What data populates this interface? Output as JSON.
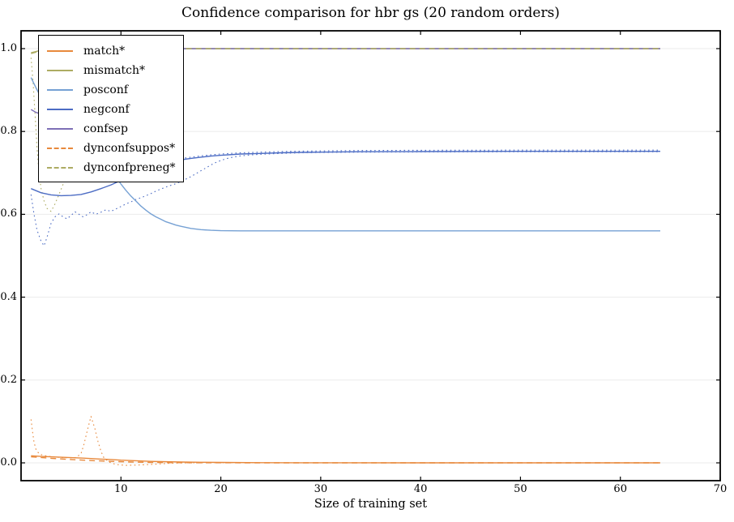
{
  "title": "Confidence comparison for hbr gs (20 random orders)",
  "chart_data": {
    "type": "line",
    "title": "Confidence comparison for hbr gs (20 random orders)",
    "xlabel": "Size of training set",
    "ylabel": "",
    "xlim": [
      0,
      70
    ],
    "ylim": [
      -0.043,
      1.043
    ],
    "xticks": [
      10,
      20,
      30,
      40,
      50,
      60,
      70
    ],
    "xtick_labels": [
      "10",
      "20",
      "30",
      "40",
      "50",
      "60",
      "70"
    ],
    "yticks": [
      0.0,
      0.2,
      0.4,
      0.6,
      0.8,
      1.0
    ],
    "ytick_labels": [
      "0.0",
      "0.2",
      "0.4",
      "0.6",
      "0.8",
      "1.0"
    ],
    "grid": "horizontal",
    "grid_color": "#ebebeb",
    "legend_position": "upper-left",
    "legend": [
      {
        "label": "match*",
        "color": "#E8893C",
        "style": "solid"
      },
      {
        "label": "mismatch*",
        "color": "#ADAC63",
        "style": "solid"
      },
      {
        "label": "posconf",
        "color": "#76A1D4",
        "style": "solid"
      },
      {
        "label": "negconf",
        "color": "#4C6CC4",
        "style": "solid"
      },
      {
        "label": "confsep",
        "color": "#7E6FB6",
        "style": "solid"
      },
      {
        "label": "dynconfsuppos*",
        "color": "#E8893C",
        "style": "dashed"
      },
      {
        "label": "dynconfpreneg*",
        "color": "#ADAC63",
        "style": "dashed"
      }
    ],
    "series": [
      {
        "name": "mismatch-std-lower",
        "color": "#ADAC63",
        "style": "dotted",
        "width": 1.1,
        "points": [
          [
            1,
            0.978
          ],
          [
            1.2,
            0.92
          ],
          [
            1.4,
            0.84
          ],
          [
            1.6,
            0.76
          ],
          [
            1.8,
            0.7
          ],
          [
            2,
            0.662
          ],
          [
            2.3,
            0.632
          ],
          [
            2.6,
            0.614
          ],
          [
            3,
            0.607
          ],
          [
            3.4,
            0.625
          ],
          [
            3.8,
            0.648
          ],
          [
            4.2,
            0.672
          ],
          [
            4.8,
            0.71
          ],
          [
            5.5,
            0.762
          ],
          [
            6.2,
            0.818
          ],
          [
            7,
            0.875
          ],
          [
            7.8,
            0.92
          ],
          [
            8.6,
            0.952
          ],
          [
            9.5,
            0.973
          ],
          [
            10.5,
            0.985
          ],
          [
            12,
            0.993
          ],
          [
            14,
            0.998
          ],
          [
            16,
            1.0
          ],
          [
            64,
            1.0
          ]
        ]
      },
      {
        "name": "negconf-std-lower",
        "color": "#4C6CC4",
        "style": "dotted",
        "width": 1.1,
        "points": [
          [
            1,
            0.648
          ],
          [
            1.3,
            0.6
          ],
          [
            1.6,
            0.562
          ],
          [
            2,
            0.535
          ],
          [
            2.3,
            0.524
          ],
          [
            2.6,
            0.545
          ],
          [
            3,
            0.578
          ],
          [
            3.4,
            0.594
          ],
          [
            3.8,
            0.601
          ],
          [
            4.2,
            0.594
          ],
          [
            4.6,
            0.589
          ],
          [
            5,
            0.597
          ],
          [
            5.4,
            0.606
          ],
          [
            5.8,
            0.6
          ],
          [
            6.2,
            0.594
          ],
          [
            6.6,
            0.599
          ],
          [
            7,
            0.606
          ],
          [
            7.5,
            0.6
          ],
          [
            8,
            0.605
          ],
          [
            8.5,
            0.611
          ],
          [
            9,
            0.607
          ],
          [
            9.5,
            0.613
          ],
          [
            10,
            0.619
          ],
          [
            10.5,
            0.625
          ],
          [
            11,
            0.63
          ],
          [
            11.5,
            0.636
          ],
          [
            12,
            0.64
          ],
          [
            12.5,
            0.645
          ],
          [
            13,
            0.65
          ],
          [
            13.5,
            0.656
          ],
          [
            14,
            0.661
          ],
          [
            14.5,
            0.666
          ],
          [
            15,
            0.67
          ],
          [
            15.5,
            0.674
          ],
          [
            16,
            0.679
          ],
          [
            16.5,
            0.685
          ],
          [
            17,
            0.691
          ],
          [
            17.5,
            0.698
          ],
          [
            18,
            0.705
          ],
          [
            18.5,
            0.712
          ],
          [
            19,
            0.719
          ],
          [
            19.5,
            0.725
          ],
          [
            20,
            0.73
          ],
          [
            20.5,
            0.734
          ],
          [
            21,
            0.737
          ],
          [
            22,
            0.741
          ],
          [
            23,
            0.7435
          ],
          [
            24,
            0.745
          ],
          [
            26,
            0.747
          ],
          [
            28,
            0.7485
          ],
          [
            30,
            0.7492
          ],
          [
            34,
            0.75
          ],
          [
            40,
            0.7505
          ],
          [
            50,
            0.751
          ],
          [
            64,
            0.751
          ]
        ]
      },
      {
        "name": "negconf-std-upper",
        "color": "#4C6CC4",
        "style": "dotted",
        "width": 1.1,
        "points": [
          [
            16,
            0.7345
          ],
          [
            17,
            0.738
          ],
          [
            18,
            0.741
          ],
          [
            19,
            0.7435
          ],
          [
            20,
            0.7455
          ],
          [
            22,
            0.7485
          ],
          [
            24,
            0.75
          ],
          [
            26,
            0.7515
          ],
          [
            28,
            0.7525
          ],
          [
            30,
            0.753
          ],
          [
            34,
            0.754
          ],
          [
            40,
            0.7545
          ],
          [
            50,
            0.755
          ],
          [
            64,
            0.755
          ]
        ]
      },
      {
        "name": "match-std",
        "color": "#E8893C",
        "style": "dotted",
        "width": 1.1,
        "points": [
          [
            1,
            0.105
          ],
          [
            1.15,
            0.075
          ],
          [
            1.3,
            0.05
          ],
          [
            1.5,
            0.032
          ],
          [
            1.8,
            0.022
          ],
          [
            2.2,
            0.018
          ],
          [
            3,
            0.015
          ],
          [
            4,
            0.013
          ],
          [
            5,
            0.012
          ],
          [
            5.5,
            0.013
          ],
          [
            6,
            0.022
          ],
          [
            6.3,
            0.045
          ],
          [
            6.6,
            0.075
          ],
          [
            7,
            0.112
          ],
          [
            7.4,
            0.082
          ],
          [
            7.7,
            0.052
          ],
          [
            8,
            0.028
          ],
          [
            8.3,
            0.012
          ],
          [
            8.8,
            0.002
          ],
          [
            9.5,
            -0.004
          ],
          [
            10.5,
            -0.006
          ],
          [
            12,
            -0.005
          ],
          [
            13.5,
            -0.003
          ],
          [
            15,
            -0.001
          ],
          [
            17,
            0.0
          ],
          [
            20,
            0.0005
          ],
          [
            24,
            0.0
          ],
          [
            64,
            0.0
          ]
        ]
      },
      {
        "name": "posconf",
        "color": "#76A1D4",
        "style": "solid",
        "width": 1.4,
        "points": [
          [
            1,
            0.93
          ],
          [
            1.5,
            0.905
          ],
          [
            2,
            0.882
          ],
          [
            2.5,
            0.862
          ],
          [
            3,
            0.845
          ],
          [
            4,
            0.815
          ],
          [
            5,
            0.79
          ],
          [
            6,
            0.768
          ],
          [
            7,
            0.748
          ],
          [
            8,
            0.728
          ],
          [
            9,
            0.706
          ],
          [
            9.5,
            0.69
          ],
          [
            10,
            0.673
          ],
          [
            10.5,
            0.658
          ],
          [
            11,
            0.644
          ],
          [
            11.5,
            0.632
          ],
          [
            12,
            0.62
          ],
          [
            12.5,
            0.61
          ],
          [
            13,
            0.601
          ],
          [
            13.5,
            0.594
          ],
          [
            14,
            0.588
          ],
          [
            14.5,
            0.582
          ],
          [
            15,
            0.578
          ],
          [
            15.5,
            0.574
          ],
          [
            16,
            0.571
          ],
          [
            17,
            0.566
          ],
          [
            18,
            0.563
          ],
          [
            19,
            0.5615
          ],
          [
            20,
            0.5605
          ],
          [
            22,
            0.56
          ],
          [
            26,
            0.56
          ],
          [
            30,
            0.56
          ],
          [
            40,
            0.56
          ],
          [
            50,
            0.56
          ],
          [
            64,
            0.56
          ]
        ]
      },
      {
        "name": "negconf",
        "color": "#4C6CC4",
        "style": "solid",
        "width": 1.4,
        "points": [
          [
            1,
            0.662
          ],
          [
            2,
            0.652
          ],
          [
            3,
            0.647
          ],
          [
            4,
            0.645
          ],
          [
            5,
            0.6455
          ],
          [
            6,
            0.648
          ],
          [
            7,
            0.654
          ],
          [
            8,
            0.662
          ],
          [
            9,
            0.671
          ],
          [
            10,
            0.682
          ],
          [
            11,
            0.694
          ],
          [
            12,
            0.704
          ],
          [
            13,
            0.7135
          ],
          [
            14,
            0.721
          ],
          [
            15,
            0.727
          ],
          [
            16,
            0.7315
          ],
          [
            17,
            0.735
          ],
          [
            18,
            0.738
          ],
          [
            19,
            0.7405
          ],
          [
            20,
            0.7425
          ],
          [
            22,
            0.7455
          ],
          [
            24,
            0.747
          ],
          [
            26,
            0.7485
          ],
          [
            28,
            0.7495
          ],
          [
            30,
            0.75
          ],
          [
            34,
            0.751
          ],
          [
            40,
            0.7515
          ],
          [
            50,
            0.752
          ],
          [
            64,
            0.752
          ]
        ]
      },
      {
        "name": "mismatch",
        "color": "#ADAC63",
        "style": "solid",
        "width": 1.4,
        "points": [
          [
            1,
            0.99
          ],
          [
            2,
            0.996
          ],
          [
            3,
            0.999
          ],
          [
            4,
            1.0
          ],
          [
            64,
            1.0
          ]
        ]
      },
      {
        "name": "confsep",
        "color": "#7E6FB6",
        "style": "solid",
        "width": 1.4,
        "points": [
          [
            1,
            0.853
          ],
          [
            1.5,
            0.846
          ],
          [
            2,
            0.842
          ],
          [
            2.5,
            0.843
          ],
          [
            3,
            0.85
          ],
          [
            4,
            0.872
          ],
          [
            5,
            0.905
          ],
          [
            6,
            0.942
          ],
          [
            7,
            0.968
          ],
          [
            8,
            0.985
          ],
          [
            9,
            0.994
          ],
          [
            10,
            0.998
          ],
          [
            11,
            1.0
          ],
          [
            64,
            1.0
          ]
        ]
      },
      {
        "name": "dynconfpreneg",
        "color": "#ADAC63",
        "style": "dashed",
        "width": 1.4,
        "points": [
          [
            1,
            0.988
          ],
          [
            2,
            0.995
          ],
          [
            3,
            0.999
          ],
          [
            4,
            1.0
          ],
          [
            64,
            1.0
          ]
        ]
      },
      {
        "name": "match",
        "color": "#E8893C",
        "style": "solid",
        "width": 1.4,
        "points": [
          [
            1,
            0.017
          ],
          [
            2,
            0.0155
          ],
          [
            3,
            0.0145
          ],
          [
            4,
            0.0135
          ],
          [
            5,
            0.0125
          ],
          [
            6,
            0.0115
          ],
          [
            7,
            0.0105
          ],
          [
            8,
            0.009
          ],
          [
            9,
            0.008
          ],
          [
            10,
            0.0065
          ],
          [
            11,
            0.0055
          ],
          [
            12,
            0.0045
          ],
          [
            13,
            0.0035
          ],
          [
            14,
            0.003
          ],
          [
            15,
            0.0025
          ],
          [
            16,
            0.002
          ],
          [
            18,
            0.0015
          ],
          [
            20,
            0.001
          ],
          [
            24,
            0.0005
          ],
          [
            28,
            0.0003
          ],
          [
            32,
            0.0002
          ],
          [
            40,
            0.0001
          ],
          [
            64,
            0.0
          ]
        ]
      },
      {
        "name": "dynconfsuppos",
        "color": "#E8893C",
        "style": "dashed",
        "width": 1.4,
        "points": [
          [
            1,
            0.0145
          ],
          [
            3,
            0.011
          ],
          [
            5,
            0.008
          ],
          [
            7,
            0.0055
          ],
          [
            9,
            0.0035
          ],
          [
            11,
            0.002
          ],
          [
            13,
            0.001
          ],
          [
            15,
            0.0005
          ],
          [
            18,
            0.0002
          ],
          [
            22,
            0.0
          ],
          [
            64,
            0.0
          ]
        ]
      }
    ]
  }
}
